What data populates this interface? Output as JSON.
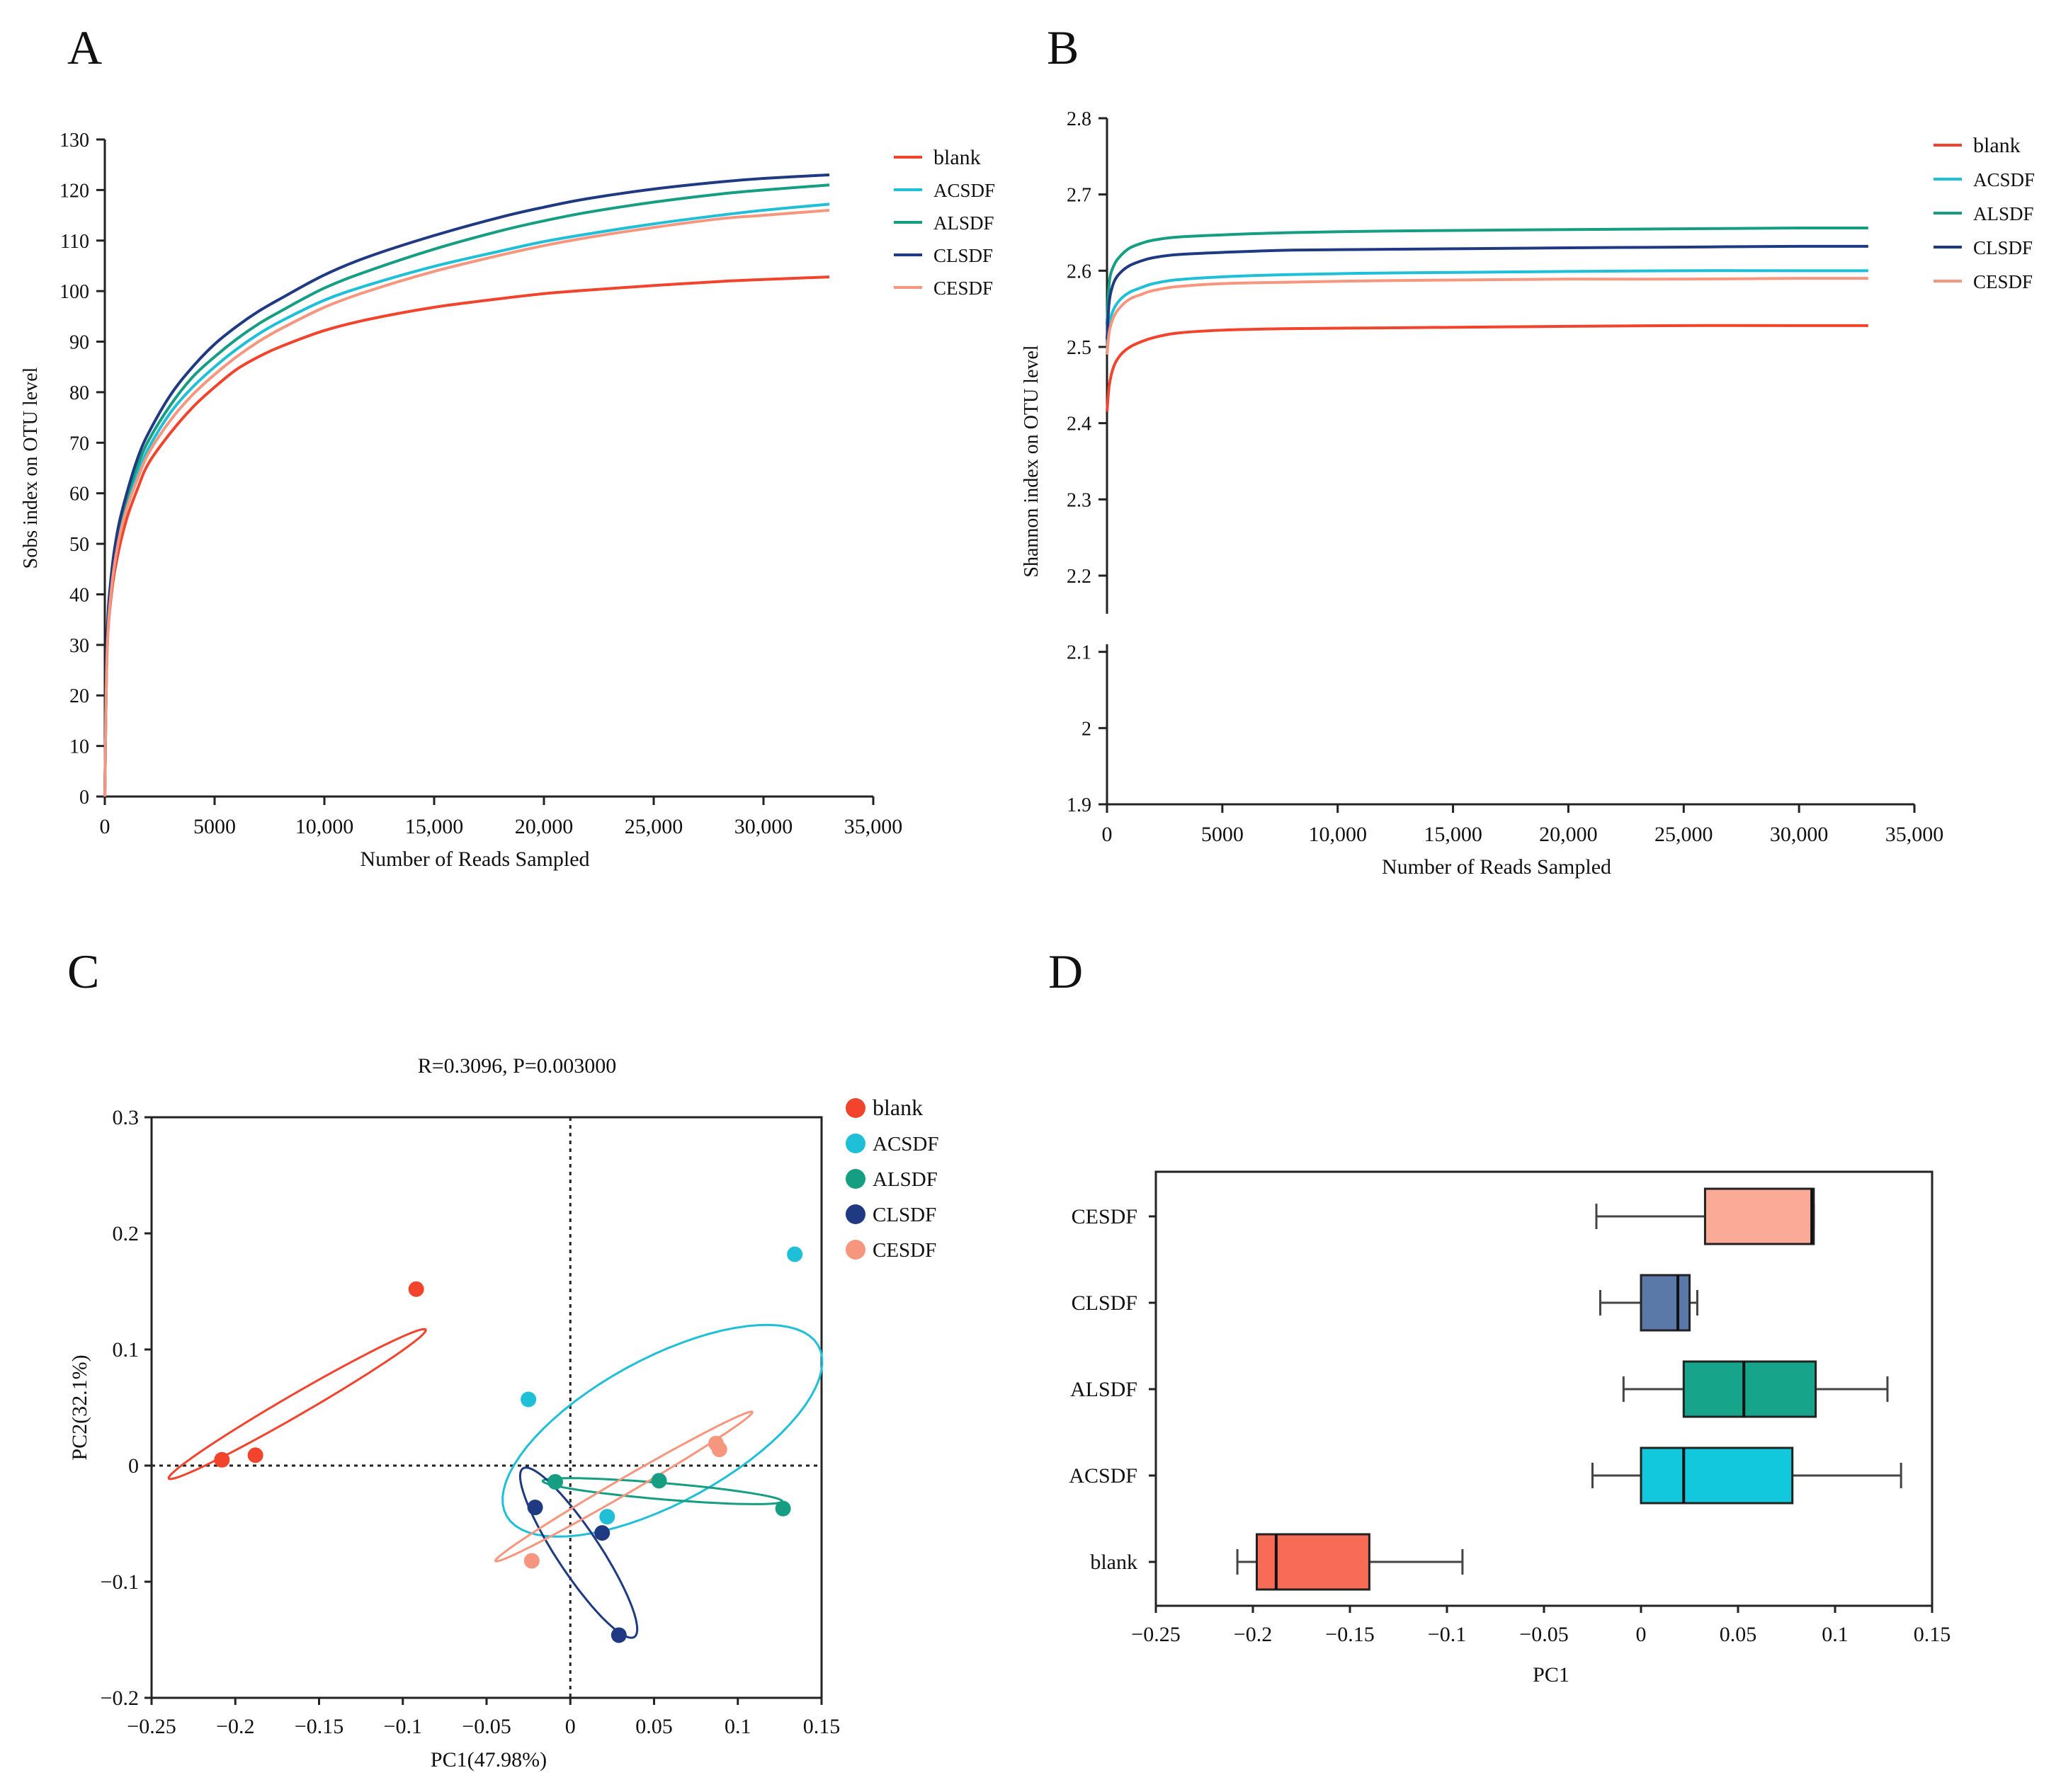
{
  "panels": {
    "A": "A",
    "B": "B",
    "C": "C",
    "D": "D"
  },
  "colors": {
    "blank": "#f2432d",
    "ACSDF": "#1fbfd8",
    "ALSDF": "#159e82",
    "CLSDF": "#1f3a82",
    "CESDF": "#f7967e",
    "box_blank": "#f86b57",
    "box_ACSDF": "#12c8dc",
    "box_ALSDF": "#16a48a",
    "box_CLSDF": "#5a78a8",
    "box_CESDF": "#fbaa98"
  },
  "chart_data": [
    {
      "id": "A",
      "type": "line",
      "title": "",
      "xlabel": "Number of Reads Sampled",
      "ylabel": "Sobs index on OTU level",
      "xlim": [
        0,
        35000
      ],
      "ylim": [
        0,
        130
      ],
      "xticks": [
        0,
        5000,
        10000,
        15000,
        20000,
        25000,
        30000,
        35000
      ],
      "xtick_labels": [
        "0",
        "5000",
        "10,000",
        "15,000",
        "20,000",
        "25,000",
        "30,000",
        "35,000"
      ],
      "yticks": [
        0,
        10,
        20,
        30,
        40,
        50,
        60,
        70,
        80,
        90,
        100,
        110,
        120,
        130
      ],
      "ytick_labels": [
        "0",
        "10",
        "20",
        "30",
        "40",
        "50",
        "60",
        "70",
        "80",
        "90",
        "100",
        "110",
        "120",
        "130"
      ],
      "legend_position": "top-right",
      "x": [
        0,
        100,
        300,
        600,
        1000,
        1500,
        2000,
        3000,
        4000,
        5000,
        6000,
        7000,
        8000,
        10000,
        12000,
        15000,
        18000,
        20000,
        22000,
        25000,
        28000,
        30000,
        33000
      ],
      "series": [
        {
          "name": "blank",
          "values": [
            0,
            28,
            40,
            48,
            55,
            61,
            66,
            72,
            77,
            81,
            84.5,
            87,
            89,
            92.2,
            94.4,
            96.8,
            98.5,
            99.5,
            100.2,
            101.1,
            101.9,
            102.3,
            102.8
          ]
        },
        {
          "name": "ACSDF",
          "values": [
            0,
            29,
            42,
            51,
            58,
            64,
            69,
            76,
            81,
            85,
            88.5,
            91.5,
            94,
            98.2,
            101.2,
            104.9,
            107.9,
            109.8,
            111.3,
            113.3,
            115,
            116,
            117.2
          ]
        },
        {
          "name": "ALSDF",
          "values": [
            0,
            30,
            43,
            52,
            59,
            65.5,
            70.5,
            77.5,
            83,
            87,
            90.5,
            93.5,
            96,
            100.6,
            104,
            108.3,
            111.9,
            113.9,
            115.6,
            117.6,
            119.2,
            120,
            121
          ]
        },
        {
          "name": "CLSDF",
          "values": [
            0,
            31,
            44,
            53,
            60,
            67,
            72,
            79.5,
            85,
            89.5,
            93,
            96,
            98.5,
            103.2,
            106.8,
            111,
            114.6,
            116.6,
            118.3,
            120.2,
            121.6,
            122.3,
            123
          ]
        },
        {
          "name": "CESDF",
          "values": [
            0,
            28,
            41,
            50,
            57,
            63,
            68,
            74.5,
            79.5,
            83.5,
            87,
            90,
            92.5,
            96.8,
            100,
            103.9,
            107.1,
            109,
            110.6,
            112.6,
            114.3,
            115,
            116
          ]
        }
      ]
    },
    {
      "id": "B",
      "type": "line",
      "title": "",
      "xlabel": "Number of Reads Sampled",
      "ylabel": "Shannon index on OTU level",
      "xlim": [
        0,
        35000
      ],
      "ylim": [
        1.9,
        2.8
      ],
      "axis_break": [
        2.15,
        2.11
      ],
      "xticks": [
        0,
        5000,
        10000,
        15000,
        20000,
        25000,
        30000,
        35000
      ],
      "xtick_labels": [
        "0",
        "5000",
        "10,000",
        "15,000",
        "20,000",
        "25,000",
        "30,000",
        "35,000"
      ],
      "yticks": [
        1.9,
        2.0,
        2.1,
        2.2,
        2.3,
        2.4,
        2.5,
        2.6,
        2.7,
        2.8
      ],
      "ytick_labels": [
        "1.9",
        "2",
        "2.1",
        "2.2",
        "2.3",
        "2.4",
        "2.5",
        "2.6",
        "2.7",
        "2.8"
      ],
      "legend_position": "top-right",
      "x": [
        0,
        100,
        300,
        600,
        1000,
        1500,
        2000,
        3000,
        5000,
        8000,
        12000,
        16000,
        20000,
        25000,
        30000,
        33000
      ],
      "series": [
        {
          "name": "blank",
          "values": [
            2.415,
            2.45,
            2.475,
            2.49,
            2.5,
            2.507,
            2.512,
            2.518,
            2.522,
            2.524,
            2.525,
            2.526,
            2.527,
            2.528,
            2.528,
            2.528
          ]
        },
        {
          "name": "ACSDF",
          "values": [
            2.49,
            2.53,
            2.55,
            2.563,
            2.572,
            2.578,
            2.583,
            2.588,
            2.592,
            2.595,
            2.597,
            2.598,
            2.599,
            2.6,
            2.6,
            2.6
          ]
        },
        {
          "name": "ALSDF",
          "values": [
            2.53,
            2.585,
            2.607,
            2.62,
            2.63,
            2.636,
            2.64,
            2.644,
            2.647,
            2.65,
            2.652,
            2.653,
            2.654,
            2.655,
            2.656,
            2.656
          ]
        },
        {
          "name": "CLSDF",
          "values": [
            2.51,
            2.56,
            2.585,
            2.598,
            2.607,
            2.613,
            2.617,
            2.621,
            2.624,
            2.627,
            2.628,
            2.629,
            2.63,
            2.631,
            2.632,
            2.632
          ]
        },
        {
          "name": "CESDF",
          "values": [
            2.49,
            2.52,
            2.54,
            2.553,
            2.563,
            2.569,
            2.574,
            2.579,
            2.583,
            2.585,
            2.587,
            2.588,
            2.589,
            2.589,
            2.59,
            2.59
          ]
        }
      ]
    },
    {
      "id": "C",
      "type": "scatter",
      "title": "R=0.3096, P=0.003000",
      "xlabel": "PC1(47.98%)",
      "ylabel": "PC2(32.1%)",
      "xlim": [
        -0.25,
        0.15
      ],
      "ylim": [
        -0.2,
        0.3
      ],
      "xticks": [
        -0.25,
        -0.2,
        -0.15,
        -0.1,
        -0.05,
        0,
        0.05,
        0.1,
        0.15
      ],
      "xtick_labels": [
        "−0.25",
        "−0.2",
        "−0.15",
        "−0.1",
        "−0.05",
        "0",
        "0.05",
        "0.1",
        "0.15"
      ],
      "yticks": [
        -0.2,
        -0.1,
        0,
        0.1,
        0.2,
        0.3
      ],
      "ytick_labels": [
        "−0.2",
        "−0.1",
        "0",
        "0.1",
        "0.2",
        "0.3"
      ],
      "legend_position": "right",
      "series": [
        {
          "name": "blank",
          "points": [
            [
              -0.208,
              0.005
            ],
            [
              -0.188,
              0.009
            ],
            [
              -0.092,
              0.152
            ]
          ]
        },
        {
          "name": "ACSDF",
          "points": [
            [
              -0.025,
              0.057
            ],
            [
              0.022,
              -0.044
            ],
            [
              0.134,
              0.182
            ]
          ]
        },
        {
          "name": "ALSDF",
          "points": [
            [
              -0.009,
              -0.014
            ],
            [
              0.053,
              -0.013
            ],
            [
              0.127,
              -0.037
            ]
          ]
        },
        {
          "name": "CLSDF",
          "points": [
            [
              -0.021,
              -0.036
            ],
            [
              0.019,
              -0.058
            ],
            [
              0.029,
              -0.146
            ]
          ]
        },
        {
          "name": "CESDF",
          "points": [
            [
              -0.023,
              -0.082
            ],
            [
              0.087,
              0.019
            ],
            [
              0.089,
              0.014
            ]
          ]
        }
      ],
      "ellipses": [
        {
          "name": "blank",
          "center": [
            -0.163,
            0.053
          ],
          "semi_axes": [
            0.1,
            0.008
          ],
          "angle_deg": 40
        },
        {
          "name": "ACSDF",
          "center": [
            0.055,
            0.03
          ],
          "semi_axes": [
            0.12,
            0.055
          ],
          "angle_deg": 43
        },
        {
          "name": "ALSDF",
          "center": [
            0.055,
            -0.022
          ],
          "semi_axes": [
            0.072,
            0.007
          ],
          "angle_deg": -7
        },
        {
          "name": "CLSDF",
          "center": [
            0.005,
            -0.075
          ],
          "semi_axes": [
            0.08,
            0.014
          ],
          "angle_deg": -66
        },
        {
          "name": "CESDF",
          "center": [
            0.032,
            -0.018
          ],
          "semi_axes": [
            0.1,
            0.006
          ],
          "angle_deg": 40
        }
      ]
    },
    {
      "id": "D",
      "type": "box",
      "title": "",
      "xlabel": "PC1",
      "ylabel": "",
      "xlim": [
        -0.25,
        0.15
      ],
      "xticks": [
        -0.25,
        -0.2,
        -0.15,
        -0.1,
        -0.05,
        0,
        0.05,
        0.1,
        0.15
      ],
      "xtick_labels": [
        "−0.25",
        "−0.2",
        "−0.15",
        "−0.1",
        "−0.05",
        "0",
        "0.05",
        "0.1",
        "0.15"
      ],
      "categories": [
        "CESDF",
        "CLSDF",
        "ALSDF",
        "ACSDF",
        "blank"
      ],
      "boxes": [
        {
          "name": "CESDF",
          "min": -0.023,
          "q1": 0.033,
          "median": 0.088,
          "q3": 0.089,
          "max": 0.089
        },
        {
          "name": "CLSDF",
          "min": -0.021,
          "q1": 0.0,
          "median": 0.019,
          "q3": 0.025,
          "max": 0.029
        },
        {
          "name": "ALSDF",
          "min": -0.009,
          "q1": 0.022,
          "median": 0.053,
          "q3": 0.09,
          "max": 0.127
        },
        {
          "name": "ACSDF",
          "min": -0.025,
          "q1": 0.0,
          "median": 0.022,
          "q3": 0.078,
          "max": 0.134
        },
        {
          "name": "blank",
          "min": -0.208,
          "q1": -0.198,
          "median": -0.188,
          "q3": -0.14,
          "max": -0.092
        }
      ]
    }
  ]
}
